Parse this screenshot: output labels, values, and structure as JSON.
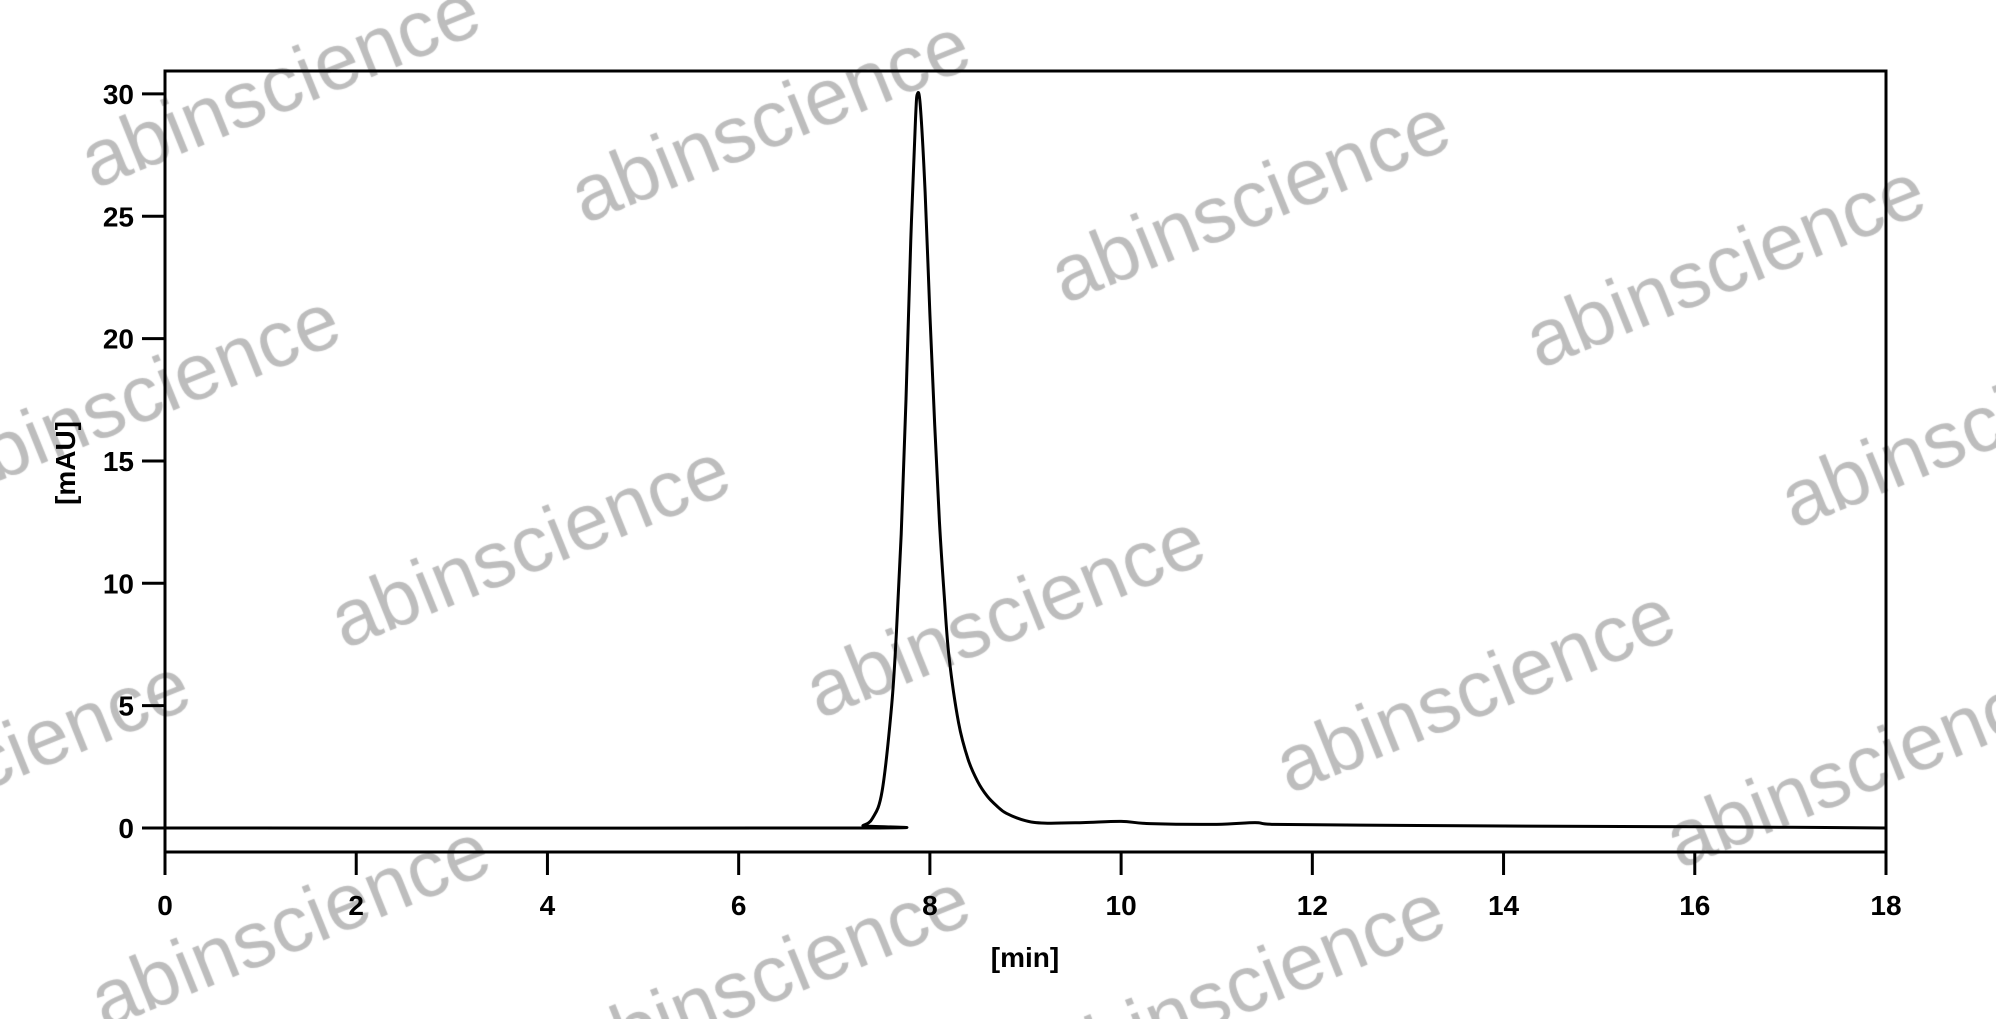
{
  "chart_data": {
    "type": "line",
    "title": "",
    "xlabel": "[min]",
    "ylabel": "[mAU]",
    "xlim": [
      0,
      18
    ],
    "ylim": [
      -1,
      31.2
    ],
    "xticks": [
      0,
      2,
      4,
      6,
      8,
      10,
      12,
      14,
      16,
      18
    ],
    "yticks": [
      0,
      5,
      10,
      15,
      20,
      25,
      30
    ],
    "grid": false,
    "line_color": "#000000",
    "series": [
      {
        "x": [
          0,
          7.2,
          7.3,
          7.4,
          7.5,
          7.6,
          7.65,
          7.7,
          7.75,
          7.8,
          7.85,
          7.87,
          7.9,
          7.95,
          8.0,
          8.05,
          8.1,
          8.15,
          8.2,
          8.3,
          8.4,
          8.5,
          8.6,
          8.7,
          8.8,
          9.0,
          9.2,
          9.6,
          10.0,
          10.3,
          11.0,
          11.4,
          11.6,
          12.5,
          14.0,
          16.0,
          17.0,
          18.0
        ],
        "y": [
          0,
          0,
          0.1,
          0.4,
          1.5,
          5,
          8,
          12,
          17.5,
          24,
          29,
          30,
          29.5,
          26,
          21,
          16.5,
          12.5,
          9.5,
          7,
          4.3,
          2.8,
          1.9,
          1.3,
          0.9,
          0.6,
          0.3,
          0.2,
          0.22,
          0.27,
          0.18,
          0.15,
          0.22,
          0.15,
          0.12,
          0.08,
          0.05,
          0.03,
          0.0
        ]
      }
    ]
  },
  "watermark": {
    "text": "abinscience",
    "color": "#bdbdbd"
  }
}
